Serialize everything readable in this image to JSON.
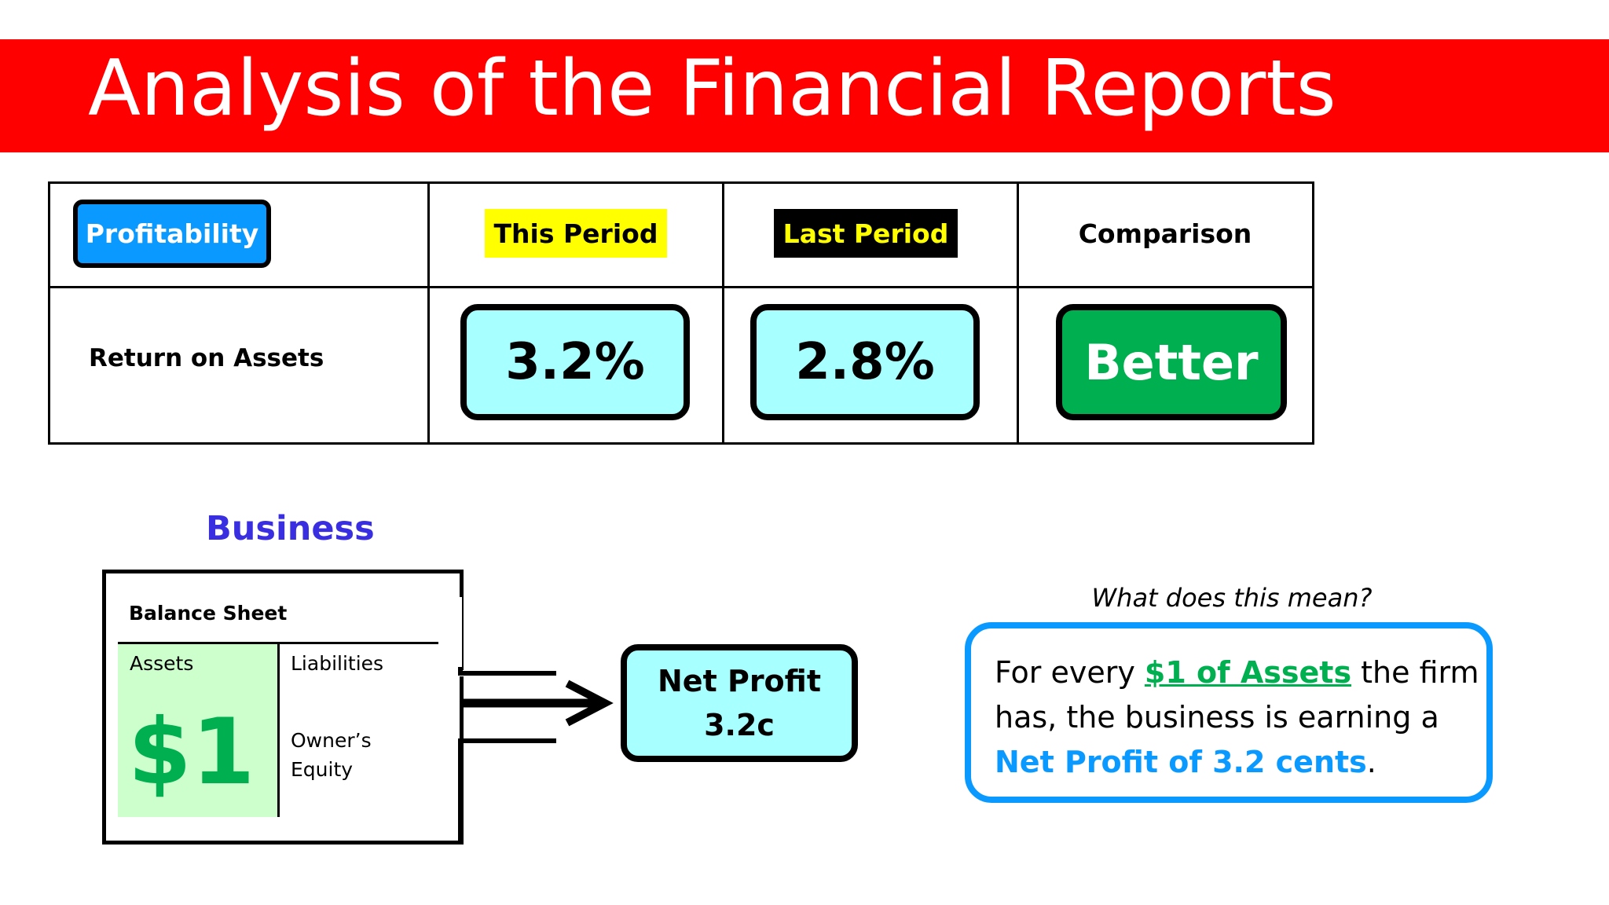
{
  "title": "Analysis of the Financial Reports",
  "table": {
    "category": "Profitability",
    "this_period": "This Period",
    "last_period": "Last Period",
    "comparison": "Comparison",
    "row_label": "Return on Assets",
    "this_value": "3.2%",
    "last_value": "2.8%",
    "result": "Better"
  },
  "business": {
    "heading": "Business",
    "balance_sheet_title": "Balance Sheet",
    "assets_label": "Assets",
    "liabilities_label": "Liabilities",
    "equity_label": "Owner’s Equity",
    "assets_value": "$1",
    "net_profit_label": "Net Profit",
    "net_profit_value": "3.2c"
  },
  "explanation": {
    "question": "What does this mean?",
    "part1": "For every ",
    "highlight1": "$1 of Assets",
    "part2": " the firm has, the business is earning a ",
    "highlight2": "Net Profit of 3.2 cents",
    "part3": "."
  },
  "colors": {
    "banner": "#ff0000",
    "profitability_tag": "#0a99ff",
    "this_period_tag": "#ffff00",
    "last_period_tag": "#000000",
    "value_box": "#a8ffff",
    "better_box": "#00b050",
    "business_heading": "#3a2fe0",
    "assets_fill": "#ccffcc"
  }
}
